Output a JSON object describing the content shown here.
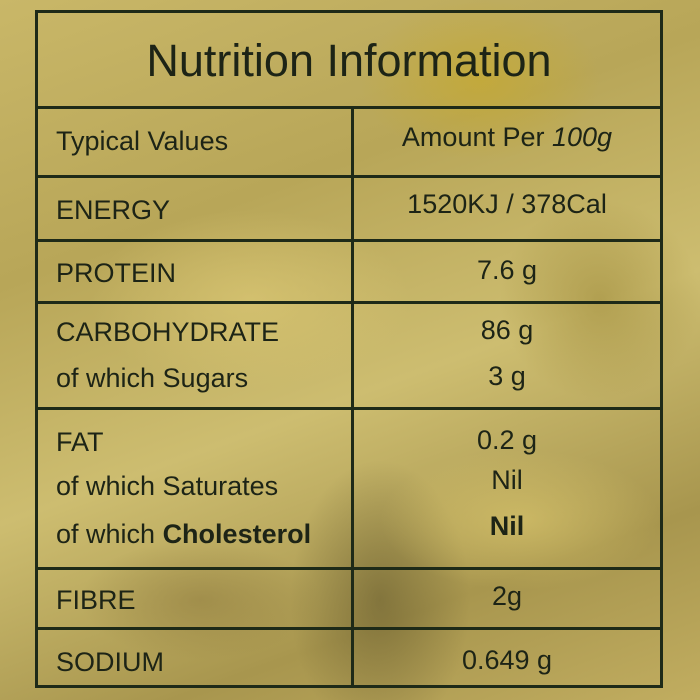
{
  "title": "Nutrition Information",
  "header": {
    "left": "Typical Values",
    "right_prefix": "Amount Per ",
    "right_unit": "100g"
  },
  "rows": [
    {
      "label": "ENERGY",
      "value": "1520KJ / 378Cal"
    },
    {
      "label": "PROTEIN",
      "value": "7.6 g"
    },
    {
      "label": "CARBOHYDRATE",
      "value": "86 g",
      "sub": [
        {
          "label": "of which Sugars",
          "value": "3 g"
        }
      ]
    },
    {
      "label": "FAT",
      "value": "0.2 g",
      "sub": [
        {
          "label": "of which Saturates",
          "value": "Nil"
        },
        {
          "label_prefix": "of which ",
          "label_bold": "Cholesterol",
          "value": "Nil"
        }
      ]
    },
    {
      "label": "FIBRE",
      "value": "2g"
    },
    {
      "label": "SODIUM",
      "value": "0.649 g"
    }
  ]
}
